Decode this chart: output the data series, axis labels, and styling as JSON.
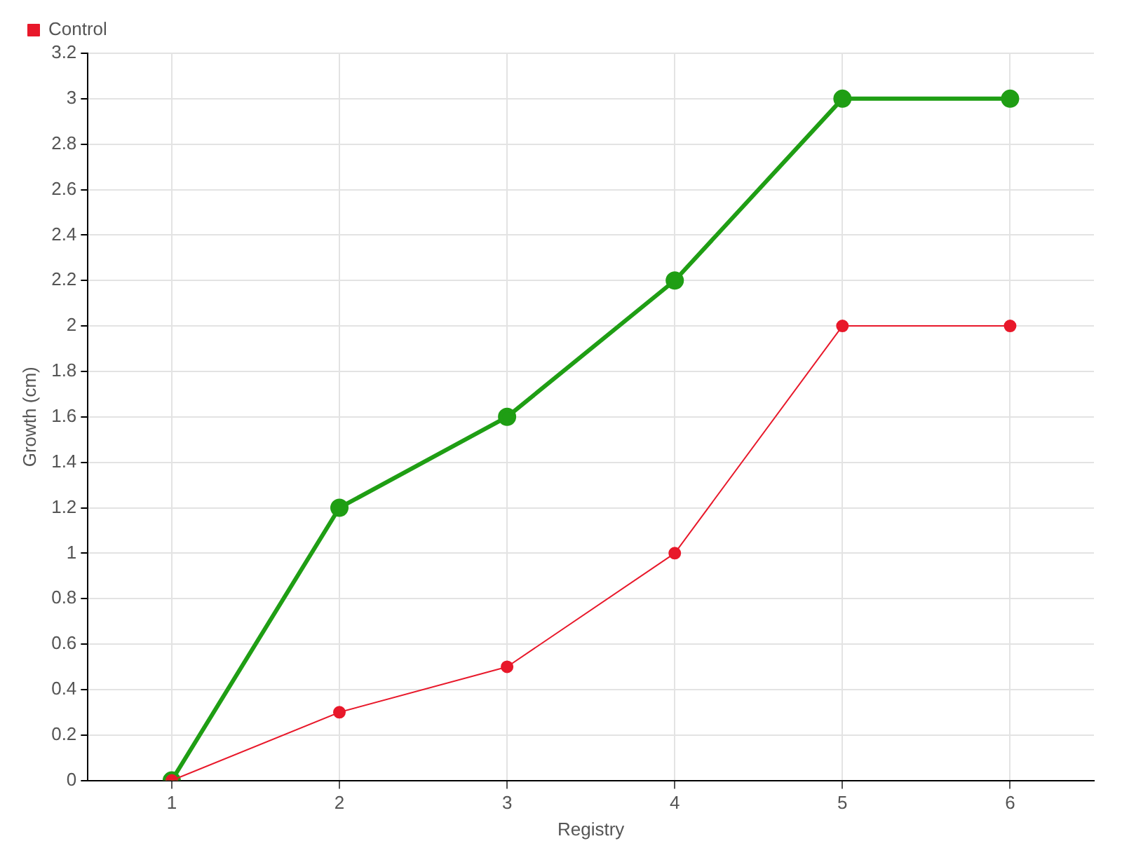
{
  "chart_data": {
    "type": "line",
    "xlabel": "Registry",
    "ylabel": "Growth (cm)",
    "categories": [
      "1",
      "2",
      "3",
      "4",
      "5",
      "6"
    ],
    "series": [
      {
        "color": "#1f9e14",
        "values": [
          0,
          1.2,
          1.6,
          2.2,
          3,
          3
        ]
      },
      {
        "name": "Control",
        "color": "#e8182a",
        "values": [
          0,
          0.3,
          0.5,
          1,
          2,
          2
        ]
      }
    ],
    "ylim": [
      0,
      3.2
    ],
    "yticks": [
      0,
      0.2,
      0.4,
      0.6,
      0.8,
      1,
      1.2,
      1.4,
      1.6,
      1.8,
      2,
      2.2,
      2.4,
      2.6,
      2.8,
      3,
      3.2
    ],
    "grid": true,
    "legend": "top left",
    "marker": "circle",
    "line_style": "solid"
  }
}
